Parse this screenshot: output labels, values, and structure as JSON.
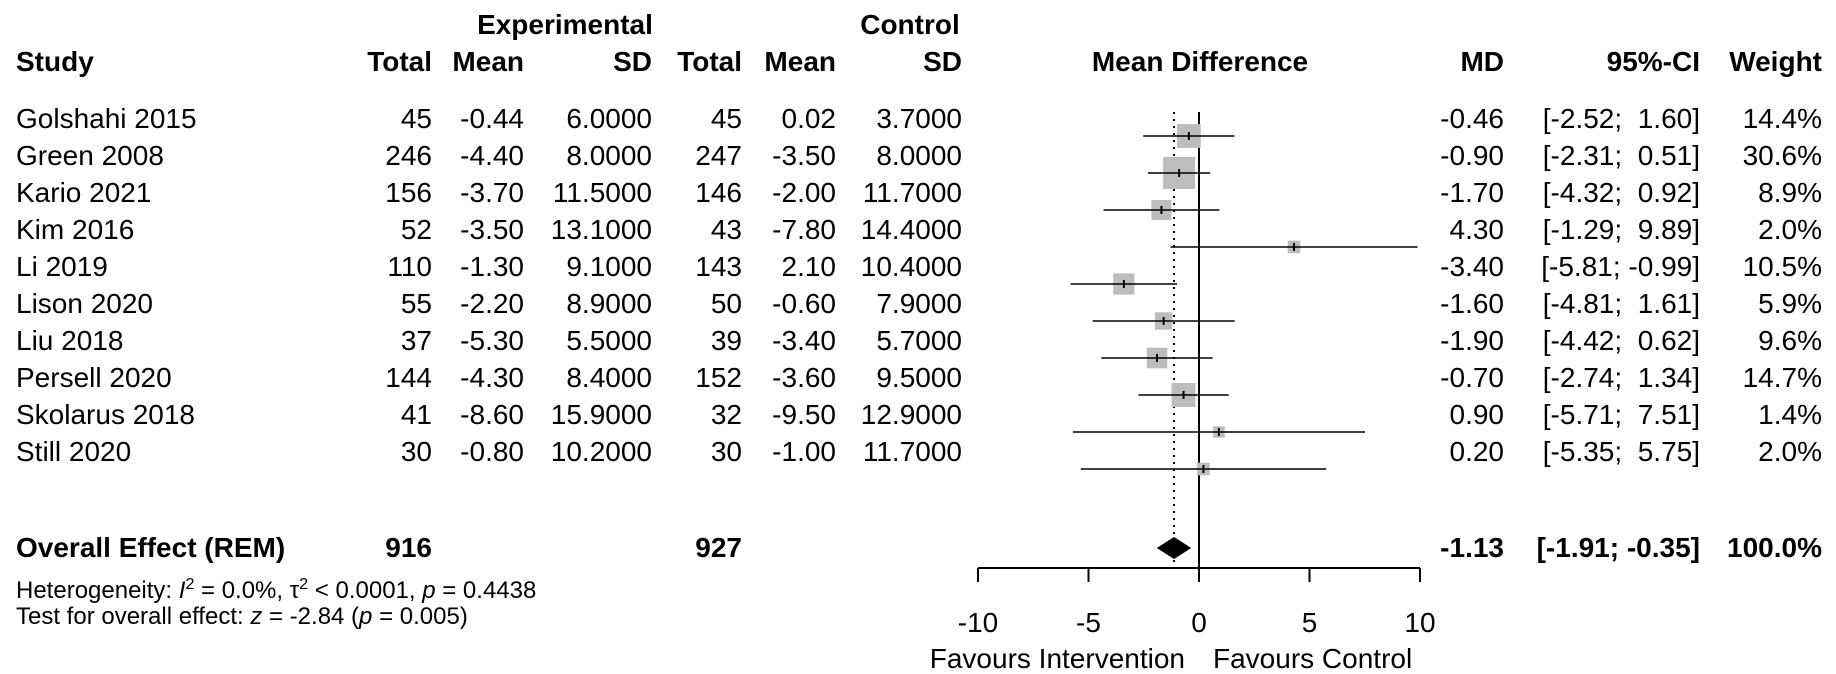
{
  "headers": {
    "group_experimental": "Experimental",
    "group_control": "Control",
    "study": "Study",
    "exp_total": "Total",
    "exp_mean": "Mean",
    "exp_sd": "SD",
    "ctl_total": "Total",
    "ctl_mean": "Mean",
    "ctl_sd": "SD",
    "plot_title": "Mean Difference",
    "md": "MD",
    "ci": "95%-CI",
    "weight": "Weight"
  },
  "studies": [
    {
      "name": "Golshahi 2015",
      "exp_total": "45",
      "exp_mean": "-0.44",
      "exp_sd": "6.0000",
      "ctl_total": "45",
      "ctl_mean": "0.02",
      "ctl_sd": "3.7000",
      "md_text": "-0.46",
      "ci_text": "[-2.52;  1.60]",
      "weight_text": "14.4%"
    },
    {
      "name": "Green 2008",
      "exp_total": "246",
      "exp_mean": "-4.40",
      "exp_sd": "8.0000",
      "ctl_total": "247",
      "ctl_mean": "-3.50",
      "ctl_sd": "8.0000",
      "md_text": "-0.90",
      "ci_text": "[-2.31;  0.51]",
      "weight_text": "30.6%"
    },
    {
      "name": "Kario 2021",
      "exp_total": "156",
      "exp_mean": "-3.70",
      "exp_sd": "11.5000",
      "ctl_total": "146",
      "ctl_mean": "-2.00",
      "ctl_sd": "11.7000",
      "md_text": "-1.70",
      "ci_text": "[-4.32;  0.92]",
      "weight_text": "8.9%"
    },
    {
      "name": "Kim 2016",
      "exp_total": "52",
      "exp_mean": "-3.50",
      "exp_sd": "13.1000",
      "ctl_total": "43",
      "ctl_mean": "-7.80",
      "ctl_sd": "14.4000",
      "md_text": "4.30",
      "ci_text": "[-1.29;  9.89]",
      "weight_text": "2.0%"
    },
    {
      "name": "Li 2019",
      "exp_total": "110",
      "exp_mean": "-1.30",
      "exp_sd": "9.1000",
      "ctl_total": "143",
      "ctl_mean": "2.10",
      "ctl_sd": "10.4000",
      "md_text": "-3.40",
      "ci_text": "[-5.81; -0.99]",
      "weight_text": "10.5%"
    },
    {
      "name": "Lison 2020",
      "exp_total": "55",
      "exp_mean": "-2.20",
      "exp_sd": "8.9000",
      "ctl_total": "50",
      "ctl_mean": "-0.60",
      "ctl_sd": "7.9000",
      "md_text": "-1.60",
      "ci_text": "[-4.81;  1.61]",
      "weight_text": "5.9%"
    },
    {
      "name": "Liu 2018",
      "exp_total": "37",
      "exp_mean": "-5.30",
      "exp_sd": "5.5000",
      "ctl_total": "39",
      "ctl_mean": "-3.40",
      "ctl_sd": "5.7000",
      "md_text": "-1.90",
      "ci_text": "[-4.42;  0.62]",
      "weight_text": "9.6%"
    },
    {
      "name": "Persell 2020",
      "exp_total": "144",
      "exp_mean": "-4.30",
      "exp_sd": "8.4000",
      "ctl_total": "152",
      "ctl_mean": "-3.60",
      "ctl_sd": "9.5000",
      "md_text": "-0.70",
      "ci_text": "[-2.74;  1.34]",
      "weight_text": "14.7%"
    },
    {
      "name": "Skolarus 2018",
      "exp_total": "41",
      "exp_mean": "-8.60",
      "exp_sd": "15.9000",
      "ctl_total": "32",
      "ctl_mean": "-9.50",
      "ctl_sd": "12.9000",
      "md_text": "0.90",
      "ci_text": "[-5.71;  7.51]",
      "weight_text": "1.4%"
    },
    {
      "name": "Still 2020",
      "exp_total": "30",
      "exp_mean": "-0.80",
      "exp_sd": "10.2000",
      "ctl_total": "30",
      "ctl_mean": "-1.00",
      "ctl_sd": "11.7000",
      "md_text": "0.20",
      "ci_text": "[-5.35;  5.75]",
      "weight_text": "2.0%"
    }
  ],
  "overall": {
    "label": "Overall Effect (REM)",
    "exp_total": "916",
    "ctl_total": "927",
    "md_text": "-1.13",
    "ci_text": "[-1.91; -0.35]",
    "weight_text": "100.0%"
  },
  "footer": {
    "heterogeneity_prefix": "Heterogeneity: ",
    "i2_symbol": "I",
    "i2_sup": "2",
    "i2_value": " = 0.0%, ",
    "tau_symbol": "τ",
    "tau_sup": "2",
    "tau_value": " < 0.0001, ",
    "p_symbol": "p",
    "p_value": " = 0.4438",
    "test_prefix": "Test for overall effect: ",
    "z_symbol": "z",
    "z_value": " = -2.84 (",
    "p2_symbol": "p",
    "p2_value": " = 0.005)"
  },
  "chart_data": {
    "type": "forest",
    "xlim": [
      -10,
      10
    ],
    "xticks": [
      -10,
      -5,
      0,
      5,
      10
    ],
    "tick_labels": [
      "-10",
      "-5",
      "0",
      "5",
      "10"
    ],
    "xlabel_left": "Favours Intervention",
    "xlabel_right": "Favours Control",
    "null_line": 0,
    "pooled_reference_line": -1.13,
    "colors": {
      "square": "#bdbdbd",
      "line": "#000000",
      "diamond": "#000000"
    },
    "studies": [
      {
        "md": -0.46,
        "lo": -2.52,
        "hi": 1.6,
        "weight": 14.4
      },
      {
        "md": -0.9,
        "lo": -2.31,
        "hi": 0.51,
        "weight": 30.6
      },
      {
        "md": -1.7,
        "lo": -4.32,
        "hi": 0.92,
        "weight": 8.9
      },
      {
        "md": 4.3,
        "lo": -1.29,
        "hi": 9.89,
        "weight": 2.0
      },
      {
        "md": -3.4,
        "lo": -5.81,
        "hi": -0.99,
        "weight": 10.5
      },
      {
        "md": -1.6,
        "lo": -4.81,
        "hi": 1.61,
        "weight": 5.9
      },
      {
        "md": -1.9,
        "lo": -4.42,
        "hi": 0.62,
        "weight": 9.6
      },
      {
        "md": -0.7,
        "lo": -2.74,
        "hi": 1.34,
        "weight": 14.7
      },
      {
        "md": 0.9,
        "lo": -5.71,
        "hi": 7.51,
        "weight": 1.4
      },
      {
        "md": 0.2,
        "lo": -5.35,
        "hi": 5.75,
        "weight": 2.0
      }
    ],
    "overall": {
      "md": -1.13,
      "lo": -1.91,
      "hi": -0.35
    }
  }
}
